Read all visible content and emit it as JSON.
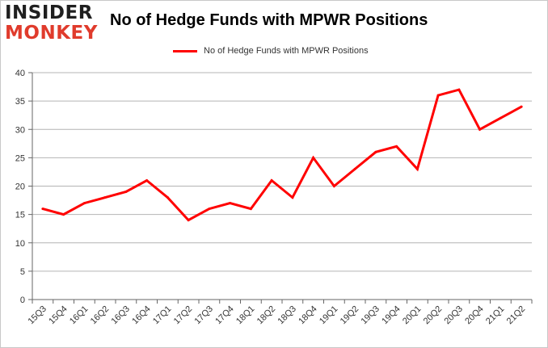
{
  "logo": {
    "line1": "INSIDER",
    "line2": "MONKEY"
  },
  "chart_data": {
    "type": "line",
    "title": "No of Hedge Funds with MPWR Positions",
    "xlabel": "",
    "ylabel": "",
    "categories": [
      "15Q3",
      "15Q4",
      "16Q1",
      "16Q2",
      "16Q3",
      "16Q4",
      "17Q1",
      "17Q2",
      "17Q3",
      "17Q4",
      "18Q1",
      "18Q2",
      "18Q3",
      "18Q4",
      "19Q1",
      "19Q2",
      "19Q3",
      "19Q4",
      "20Q1",
      "20Q2",
      "20Q3",
      "20Q4",
      "21Q1",
      "21Q2"
    ],
    "series": [
      {
        "name": "No of Hedge Funds with MPWR Positions",
        "color": "#ff0000",
        "values": [
          16,
          15,
          17,
          18,
          19,
          21,
          18,
          14,
          16,
          17,
          16,
          21,
          18,
          25,
          20,
          23,
          26,
          27,
          23,
          36,
          37,
          30,
          32,
          34
        ]
      }
    ],
    "ylim": [
      0,
      40
    ],
    "yticks": [
      0,
      5,
      10,
      15,
      20,
      25,
      30,
      35,
      40
    ],
    "grid": true,
    "legend": "top-center"
  }
}
